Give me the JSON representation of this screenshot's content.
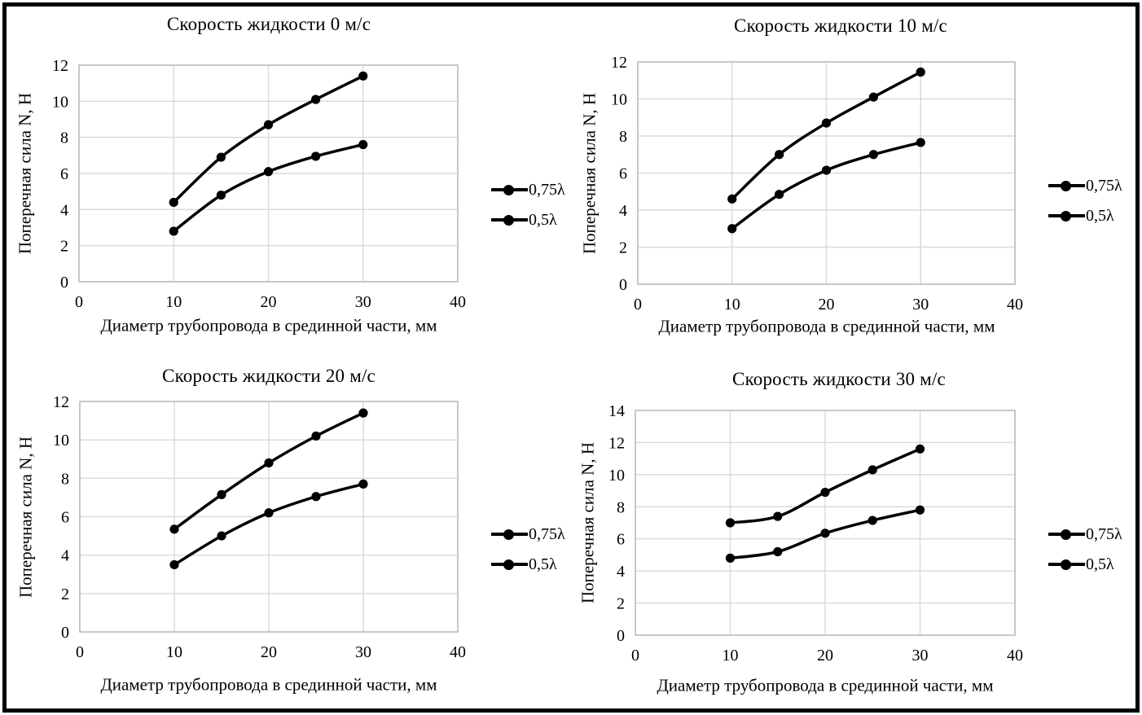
{
  "figure": {
    "border_color": "#000000",
    "background": "#ffffff",
    "grid_color": "#d9d9d9",
    "plot_border_color": "#bfbfbf",
    "series_color": "#000000"
  },
  "chart_data": [
    {
      "type": "line",
      "title": "Скорость жидкости 0 м/с",
      "xlabel": "Диаметр трубопровода в срединной части, мм",
      "ylabel": "Поперечная сила N, Н",
      "x": [
        10,
        15,
        20,
        25,
        30
      ],
      "series": [
        {
          "name": "0,75λ",
          "values": [
            4.4,
            6.9,
            8.7,
            10.1,
            11.4
          ]
        },
        {
          "name": "0,5λ",
          "values": [
            2.8,
            4.8,
            6.1,
            6.95,
            7.6
          ]
        }
      ],
      "xlim": [
        0,
        40
      ],
      "ylim": [
        0,
        12
      ],
      "x_ticks": [
        0,
        10,
        20,
        30,
        40
      ],
      "y_ticks": [
        0,
        2,
        4,
        6,
        8,
        10,
        12
      ],
      "grid": true,
      "legend_position": "right"
    },
    {
      "type": "line",
      "title": "Скорость жидкости 10 м/с",
      "xlabel": "Диаметр трубопровода в срединной части, мм",
      "ylabel": "Поперечная сила N, Н",
      "x": [
        10,
        15,
        20,
        25,
        30
      ],
      "series": [
        {
          "name": "0,75λ",
          "values": [
            4.6,
            7.0,
            8.7,
            10.1,
            11.45
          ]
        },
        {
          "name": "0,5λ",
          "values": [
            3.0,
            4.85,
            6.15,
            7.0,
            7.65
          ]
        }
      ],
      "xlim": [
        0,
        40
      ],
      "ylim": [
        0,
        12
      ],
      "x_ticks": [
        0,
        10,
        20,
        30,
        40
      ],
      "y_ticks": [
        0,
        2,
        4,
        6,
        8,
        10,
        12
      ],
      "grid": true,
      "legend_position": "right"
    },
    {
      "type": "line",
      "title": "Скорость жидкости 20 м/с",
      "xlabel": "Диаметр трубопровода в срединной части, мм",
      "ylabel": "Поперечная сила N, Н",
      "x": [
        10,
        15,
        20,
        25,
        30
      ],
      "series": [
        {
          "name": "0,75λ",
          "values": [
            5.35,
            7.15,
            8.8,
            10.2,
            11.4
          ]
        },
        {
          "name": "0,5λ",
          "values": [
            3.5,
            5.0,
            6.2,
            7.05,
            7.7
          ]
        }
      ],
      "xlim": [
        0,
        40
      ],
      "ylim": [
        0,
        12
      ],
      "x_ticks": [
        0,
        10,
        20,
        30,
        40
      ],
      "y_ticks": [
        0,
        2,
        4,
        6,
        8,
        10,
        12
      ],
      "grid": true,
      "legend_position": "right"
    },
    {
      "type": "line",
      "title": "Скорость жидкости 30 м/с",
      "xlabel": "Диаметр трубопровода в срединной части, мм",
      "ylabel": "Поперечная сила N, Н",
      "x": [
        10,
        15,
        20,
        25,
        30
      ],
      "series": [
        {
          "name": "0,75λ",
          "values": [
            7.0,
            7.4,
            8.9,
            10.3,
            11.6
          ]
        },
        {
          "name": "0,5λ",
          "values": [
            4.8,
            5.2,
            6.35,
            7.15,
            7.8
          ]
        }
      ],
      "xlim": [
        0,
        40
      ],
      "ylim": [
        0,
        14
      ],
      "x_ticks": [
        0,
        10,
        20,
        30,
        40
      ],
      "y_ticks": [
        0,
        2,
        4,
        6,
        8,
        10,
        12,
        14
      ],
      "grid": true,
      "legend_position": "right"
    }
  ]
}
